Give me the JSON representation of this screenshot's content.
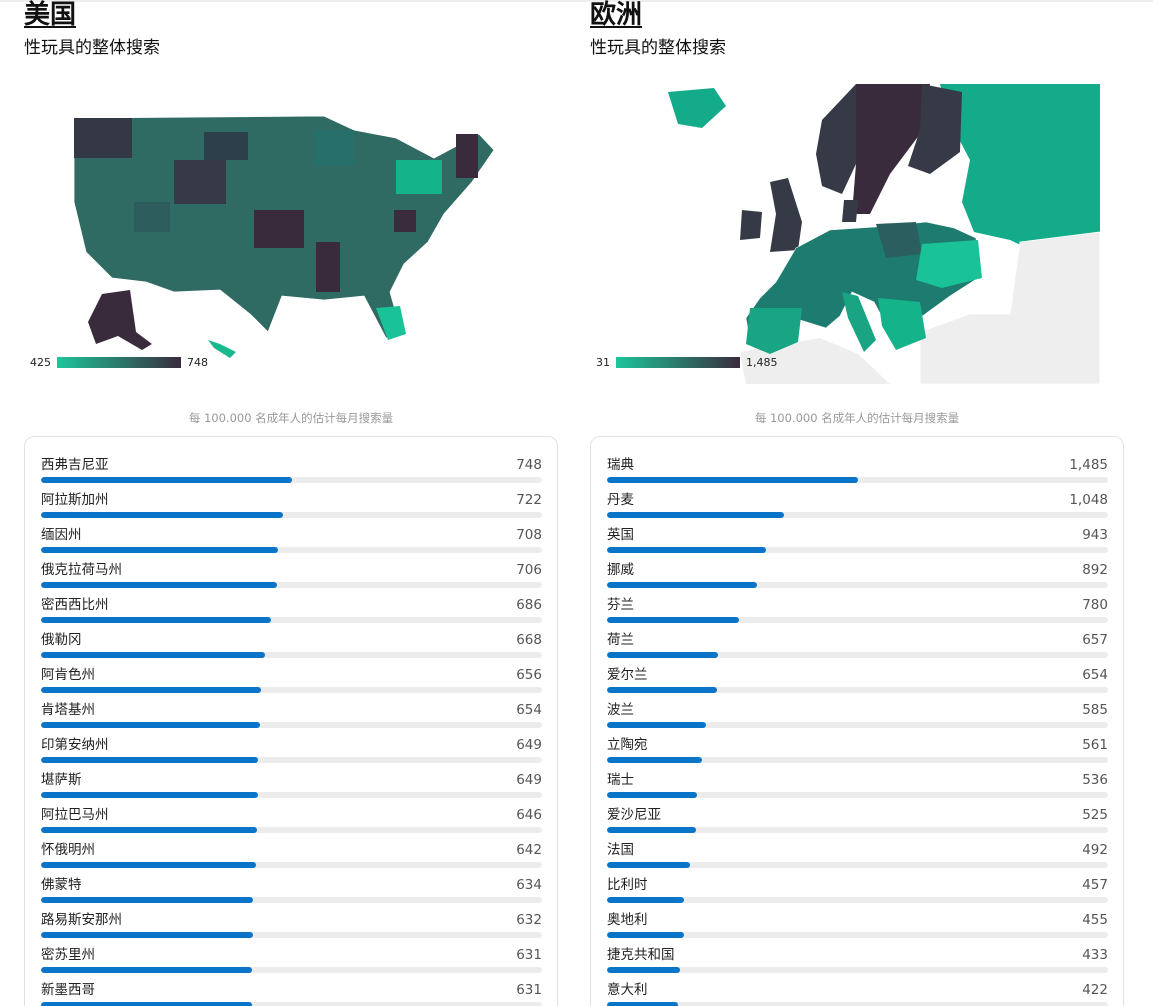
{
  "us": {
    "title": "美国",
    "subtitle": "性玩具的整体搜索",
    "legend_min": "425",
    "legend_max": "748",
    "caption": "每 100.000 名成年人的估计每月搜索量",
    "colors": {
      "low": "#1ec59a",
      "high": "#3a2b3c"
    },
    "items": [
      {
        "name": "西弗吉尼亚",
        "value": 748,
        "value_label": "748"
      },
      {
        "name": "阿拉斯加州",
        "value": 722,
        "value_label": "722"
      },
      {
        "name": "缅因州",
        "value": 708,
        "value_label": "708"
      },
      {
        "name": "俄克拉荷马州",
        "value": 706,
        "value_label": "706"
      },
      {
        "name": "密西西比州",
        "value": 686,
        "value_label": "686"
      },
      {
        "name": "俄勒冈",
        "value": 668,
        "value_label": "668"
      },
      {
        "name": "阿肯色州",
        "value": 656,
        "value_label": "656"
      },
      {
        "name": "肯塔基州",
        "value": 654,
        "value_label": "654"
      },
      {
        "name": "印第安纳州",
        "value": 649,
        "value_label": "649"
      },
      {
        "name": "堪萨斯",
        "value": 649,
        "value_label": "649"
      },
      {
        "name": "阿拉巴马州",
        "value": 646,
        "value_label": "646"
      },
      {
        "name": "怀俄明州",
        "value": 642,
        "value_label": "642"
      },
      {
        "name": "佛蒙特",
        "value": 634,
        "value_label": "634"
      },
      {
        "name": "路易斯安那州",
        "value": 632,
        "value_label": "632"
      },
      {
        "name": "密苏里州",
        "value": 631,
        "value_label": "631"
      },
      {
        "name": "新墨西哥",
        "value": 631,
        "value_label": "631"
      }
    ]
  },
  "eu": {
    "title": "欧洲",
    "subtitle": "性玩具的整体搜索",
    "legend_min": "31",
    "legend_max": "1,485",
    "caption": "每 100.000 名成年人的估计每月搜索量",
    "colors": {
      "low": "#1ec59a",
      "high": "#3a2b3c",
      "bar": "#0a74c8"
    },
    "items": [
      {
        "name": "瑞典",
        "value": 1485,
        "value_label": "1,485"
      },
      {
        "name": "丹麦",
        "value": 1048,
        "value_label": "1,048"
      },
      {
        "name": "英国",
        "value": 943,
        "value_label": "943"
      },
      {
        "name": "挪威",
        "value": 892,
        "value_label": "892"
      },
      {
        "name": "芬兰",
        "value": 780,
        "value_label": "780"
      },
      {
        "name": "荷兰",
        "value": 657,
        "value_label": "657"
      },
      {
        "name": "爱尔兰",
        "value": 654,
        "value_label": "654"
      },
      {
        "name": "波兰",
        "value": 585,
        "value_label": "585"
      },
      {
        "name": "立陶宛",
        "value": 561,
        "value_label": "561"
      },
      {
        "name": "瑞士",
        "value": 536,
        "value_label": "536"
      },
      {
        "name": "爱沙尼亚",
        "value": 525,
        "value_label": "525"
      },
      {
        "name": "法国",
        "value": 492,
        "value_label": "492"
      },
      {
        "name": "比利时",
        "value": 457,
        "value_label": "457"
      },
      {
        "name": "奥地利",
        "value": 455,
        "value_label": "455"
      },
      {
        "name": "捷克共和国",
        "value": 433,
        "value_label": "433"
      },
      {
        "name": "意大利",
        "value": 422,
        "value_label": "422"
      }
    ]
  }
}
